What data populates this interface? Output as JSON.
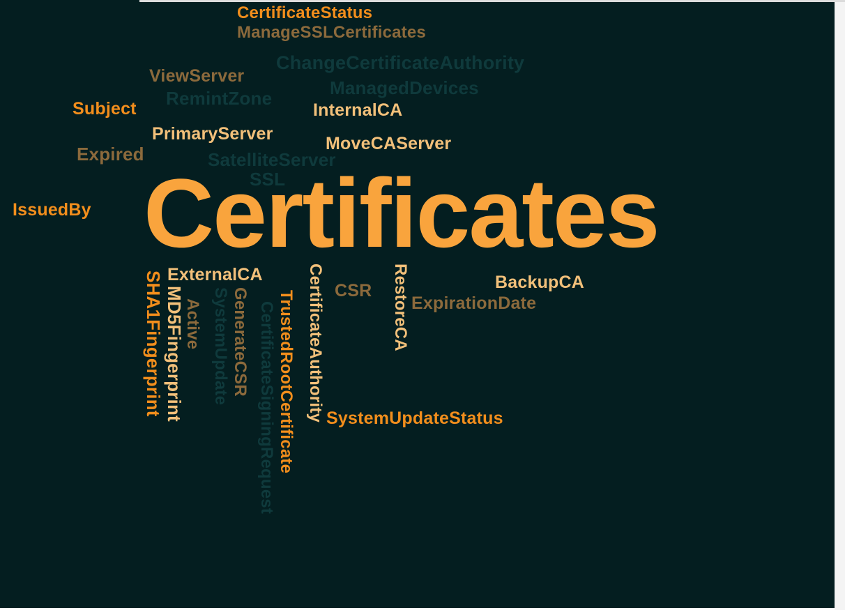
{
  "colors": {
    "background": "#041e20",
    "bright_orange": "#f9a43d",
    "orange": "#f28e1c",
    "cream": "#f2c07a",
    "brown": "#8c6a3c",
    "ghost_teal": "#0f3a3c"
  },
  "words": {
    "main": "Certificates",
    "certificate_status": "CertificateStatus",
    "manage_ssl_certificates": "ManageSSLCertificates",
    "change_certificate_authority": "ChangeCertificateAuthority",
    "view_server": "ViewServer",
    "managed_devices": "ManagedDevices",
    "remint_zone": "RemintZone",
    "subject": "Subject",
    "internal_ca": "InternalCA",
    "primary_server": "PrimaryServer",
    "move_ca_server": "MoveCAServer",
    "expired": "Expired",
    "satellite_server": "SatelliteServer",
    "ssl": "SSL",
    "issued_by": "IssuedBy",
    "external_ca": "ExternalCA",
    "csr": "CSR",
    "backup_ca": "BackupCA",
    "expiration_date": "ExpirationDate",
    "system_update_status": "SystemUpdateStatus",
    "sha1_fingerprint": "SHA1Fingerprint",
    "md5_fingerprint": "MD5Fingerprint",
    "active": "Active",
    "system_update": "SystemUpdate",
    "generate_csr": "GenerateCSR",
    "certificate_signing_request": "CertificateSigningRequest",
    "trusted_root_certificate": "TrustedRootCertificate",
    "certificate_authority": "CertificateAuthority",
    "restore_ca": "RestoreCA"
  }
}
